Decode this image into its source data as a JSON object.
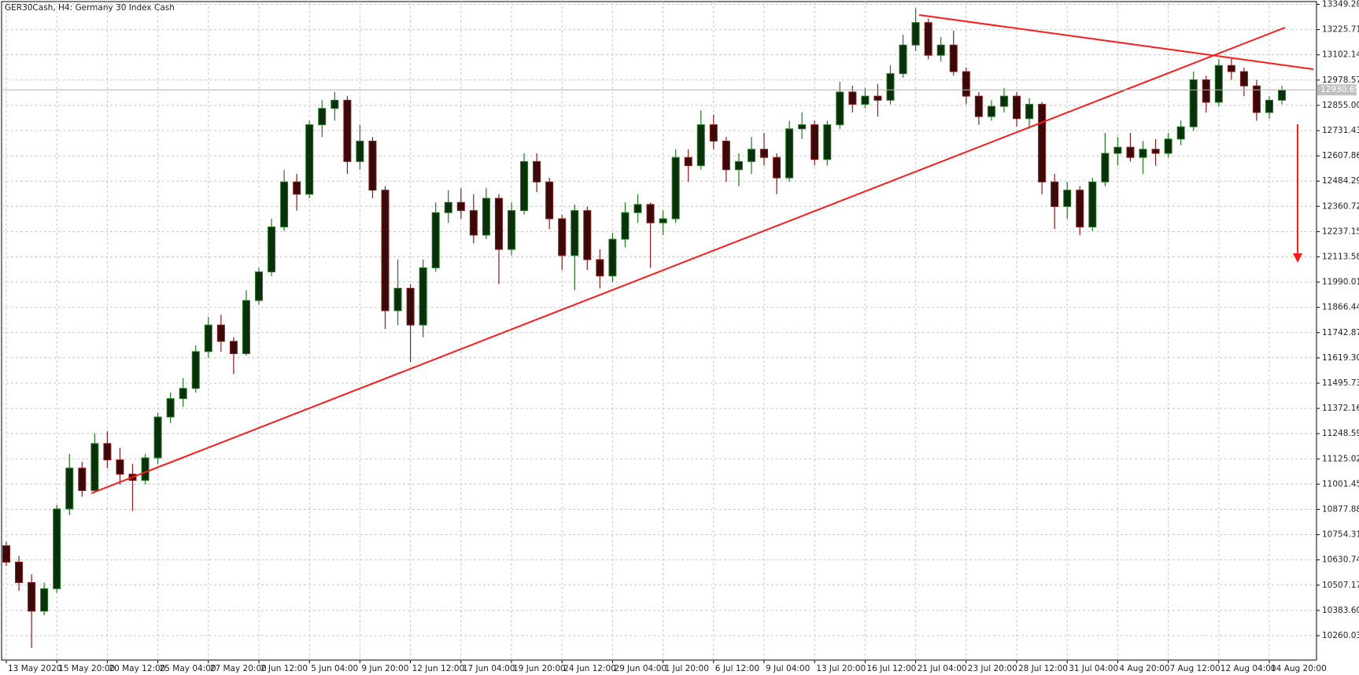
{
  "chart_data": {
    "type": "candlestick",
    "title": "GER30Cash, H4:  Germany 30 Index Cash",
    "up_color": "#1f7a1f",
    "down_color": "#8b1a1a",
    "grid": true,
    "categories": [
      "13 May 2020",
      null,
      null,
      null,
      "15 May 20:00",
      null,
      null,
      null,
      "20 May 12:00",
      null,
      null,
      null,
      "25 May 04:00",
      null,
      null,
      null,
      "27 May 20:00",
      null,
      null,
      null,
      "2 Jun 12:00",
      null,
      null,
      null,
      "5 Jun 04:00",
      null,
      null,
      null,
      "9 Jun 20:00",
      null,
      null,
      null,
      "12 Jun 12:00",
      null,
      null,
      null,
      "17 Jun 04:00",
      null,
      null,
      null,
      "19 Jun 20:00",
      null,
      null,
      null,
      "24 Jun 12:00",
      null,
      null,
      null,
      "29 Jun 04:00",
      null,
      null,
      null,
      "1 Jul 20:00",
      null,
      null,
      null,
      "6 Jul 12:00",
      null,
      null,
      null,
      "9 Jul 04:00",
      null,
      null,
      null,
      "13 Jul 20:00",
      null,
      null,
      null,
      "16 Jul 12:00",
      null,
      null,
      null,
      "21 Jul 04:00",
      null,
      null,
      null,
      "23 Jul 20:00",
      null,
      null,
      null,
      "28 Jul 12:00",
      null,
      null,
      null,
      "31 Jul 04:00",
      null,
      null,
      null,
      "4 Aug 20:00",
      null,
      null,
      null,
      "7 Aug 12:00",
      null,
      null,
      null,
      "12 Aug 04:00",
      null,
      null,
      null,
      "14 Aug 20:00",
      null
    ],
    "open": [
      10700,
      10620,
      10520,
      10380,
      10490,
      10880,
      11080,
      10970,
      11200,
      11120,
      11050,
      11020,
      11130,
      11330,
      11420,
      11470,
      11650,
      11780,
      11700,
      11640,
      11900,
      12040,
      12260,
      12480,
      12420,
      12760,
      12840,
      12880,
      12580,
      12680,
      12440,
      11850,
      11960,
      11780,
      12060,
      12330,
      12380,
      12340,
      12220,
      12400,
      12150,
      12340,
      12580,
      12480,
      12300,
      12120,
      12340,
      12100,
      12020,
      12200,
      12330,
      12370,
      12280,
      12300,
      12600,
      12560,
      12760,
      12680,
      12540,
      12580,
      12640,
      12600,
      12500,
      12740,
      12760,
      12590,
      12760,
      12920,
      12860,
      12900,
      12880,
      13010,
      13150,
      13260,
      13100,
      13150,
      13020,
      12900,
      12800,
      12850,
      12900,
      12790,
      12860,
      12480,
      12360,
      12440,
      12260,
      12480,
      12620,
      12650,
      12600,
      12640,
      12620,
      12690,
      12750,
      12980,
      12870,
      13050,
      13020,
      12950,
      12820,
      12880
    ],
    "high": [
      10720,
      10650,
      10560,
      10520,
      10900,
      11150,
      11110,
      11250,
      11260,
      11180,
      11100,
      11150,
      11350,
      11450,
      11520,
      11680,
      11820,
      11830,
      11720,
      11950,
      12060,
      12300,
      12540,
      12520,
      12780,
      12880,
      12920,
      12900,
      12760,
      12700,
      12460,
      12100,
      11980,
      12100,
      12380,
      12440,
      12450,
      12420,
      12450,
      12420,
      12380,
      12620,
      12620,
      12500,
      12320,
      12370,
      12360,
      12150,
      12230,
      12380,
      12420,
      12380,
      12340,
      12640,
      12640,
      12830,
      12810,
      12700,
      12620,
      12700,
      12720,
      12620,
      12780,
      12820,
      12780,
      12780,
      12970,
      12950,
      12940,
      12960,
      13050,
      13200,
      13330,
      13280,
      13190,
      13220,
      13040,
      12920,
      12880,
      12940,
      12920,
      12890,
      12870,
      12520,
      12480,
      12460,
      12500,
      12720,
      12700,
      12720,
      12680,
      12690,
      12720,
      12780,
      13020,
      13000,
      13080,
      13090,
      13040,
      12980,
      12900,
      12950
    ],
    "low": [
      10600,
      10480,
      10200,
      10360,
      10470,
      10850,
      10940,
      10960,
      11080,
      11000,
      10870,
      11000,
      11100,
      11300,
      11380,
      11450,
      11620,
      11650,
      11540,
      11630,
      11880,
      12020,
      12240,
      12340,
      12400,
      12700,
      12780,
      12520,
      12540,
      12400,
      11760,
      11780,
      11600,
      11720,
      12040,
      12280,
      12300,
      12180,
      12200,
      11980,
      12120,
      12320,
      12430,
      12250,
      12050,
      11950,
      12050,
      11960,
      11990,
      12160,
      12280,
      12060,
      12220,
      12280,
      12480,
      12540,
      12640,
      12480,
      12460,
      12520,
      12560,
      12420,
      12480,
      12690,
      12560,
      12560,
      12740,
      12820,
      12840,
      12800,
      12860,
      12990,
      13120,
      13080,
      13070,
      13000,
      12860,
      12760,
      12780,
      12820,
      12750,
      12740,
      12420,
      12250,
      12300,
      12220,
      12240,
      12460,
      12560,
      12580,
      12520,
      12560,
      12600,
      12660,
      12730,
      12820,
      12850,
      12980,
      12900,
      12780,
      12790,
      12860
    ],
    "close": [
      10620,
      10520,
      10380,
      10490,
      10880,
      11080,
      10970,
      11200,
      11120,
      11050,
      11020,
      11130,
      11330,
      11420,
      11470,
      11650,
      11780,
      11700,
      11640,
      11900,
      12040,
      12260,
      12480,
      12420,
      12760,
      12840,
      12880,
      12580,
      12680,
      12440,
      11850,
      11960,
      11780,
      12060,
      12330,
      12380,
      12340,
      12220,
      12400,
      12150,
      12340,
      12580,
      12480,
      12300,
      12120,
      12340,
      12100,
      12020,
      12200,
      12330,
      12370,
      12280,
      12300,
      12600,
      12560,
      12760,
      12680,
      12540,
      12580,
      12640,
      12600,
      12500,
      12740,
      12760,
      12590,
      12760,
      12920,
      12860,
      12900,
      12880,
      13010,
      13150,
      13260,
      13100,
      13150,
      13020,
      12900,
      12800,
      12850,
      12900,
      12790,
      12860,
      12480,
      12360,
      12440,
      12260,
      12480,
      12620,
      12650,
      12600,
      12640,
      12620,
      12690,
      12750,
      12980,
      12870,
      13050,
      13020,
      12950,
      12820,
      12880,
      12930
    ],
    "last_price": 12930.65,
    "ylim": [
      10140.7,
      13362.7
    ],
    "yticks": [
      13349.28,
      13225.71,
      13102.14,
      12978.57,
      {
        "value": 12855,
        "label": "12855.00"
      },
      12731.43,
      12607.86,
      12484.29,
      12360.72,
      12237.15,
      12113.58,
      11990.01,
      11866.44,
      11742.87,
      {
        "value": 11619.3,
        "label": "11619.30"
      },
      11495.73,
      11372.16,
      11248.59,
      11125.02,
      11001.45,
      10877.88,
      10754.31,
      10630.74,
      10507.17,
      {
        "value": 10383.6,
        "label": "10383.60"
      },
      10260.03
    ]
  }
}
